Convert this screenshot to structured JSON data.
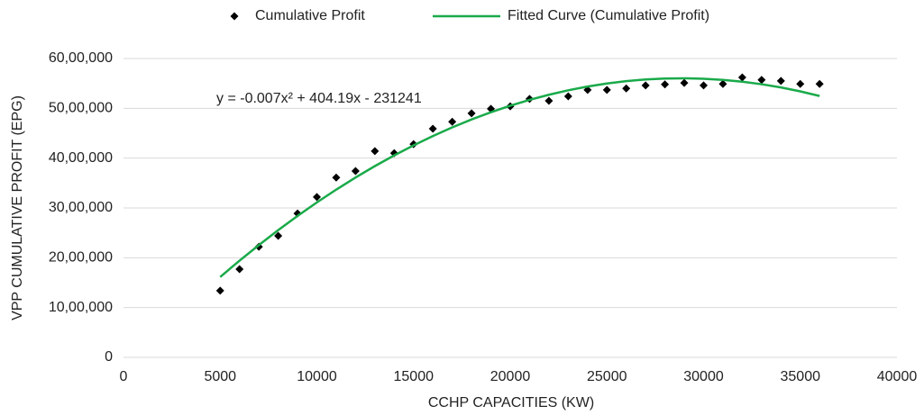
{
  "chart_data": {
    "type": "scatter",
    "xlabel": "CCHP CAPACITIES (KW)",
    "ylabel": "VPP CUMULATIVE PROFIT (EPG)",
    "annotation": "y = -0.007x² + 404.19x - 231241",
    "x": [
      5000,
      6000,
      7000,
      8000,
      9000,
      10000,
      11000,
      12000,
      13000,
      14000,
      15000,
      16000,
      17000,
      18000,
      19000,
      20000,
      21000,
      22000,
      23000,
      24000,
      25000,
      26000,
      27000,
      28000,
      29000,
      30000,
      31000,
      32000,
      33000,
      34000,
      35000,
      36000
    ],
    "series": [
      {
        "name": "Cumulative Profit",
        "type": "scatter",
        "color": "#000000",
        "values": [
          1340000,
          1770000,
          2220000,
          2440000,
          2890000,
          3220000,
          3610000,
          3740000,
          4140000,
          4100000,
          4280000,
          4590000,
          4730000,
          4900000,
          4990000,
          5040000,
          5190000,
          5150000,
          5240000,
          5370000,
          5370000,
          5400000,
          5460000,
          5480000,
          5510000,
          5460000,
          5490000,
          5620000,
          5570000,
          5550000,
          5490000,
          5490000
        ]
      },
      {
        "name": "Fitted Curve (Cumulative Profit)",
        "type": "line",
        "color": "#1aaa4a",
        "values": [
          1614709,
          1941899,
          2255089,
          2554279,
          2839469,
          3110659,
          3367849,
          3611039,
          3840229,
          4055419,
          4256609,
          4443799,
          4616989,
          4776179,
          4921369,
          5052559,
          5169749,
          5272939,
          5362129,
          5437319,
          5498509,
          5545699,
          5578889,
          5598079,
          5603269,
          5594459,
          5571649,
          5534839,
          5484029,
          5419219,
          5340409,
          5247599
        ]
      }
    ],
    "xlim": [
      0,
      40000
    ],
    "xticks": [
      0,
      5000,
      10000,
      15000,
      20000,
      25000,
      30000,
      35000,
      40000
    ],
    "ylim": [
      0,
      6000000
    ],
    "yticks": [
      0,
      {
        "value": 1000000,
        "label": "10,00,000"
      },
      {
        "value": 2000000,
        "label": "20,00,000"
      },
      {
        "value": 3000000,
        "label": "30,00,000"
      },
      {
        "value": 4000000,
        "label": "40,00,000"
      },
      {
        "value": 5000000,
        "label": "50,00,000"
      },
      {
        "value": 6000000,
        "label": "60,00,000"
      }
    ],
    "grid": true,
    "legend": "top"
  }
}
